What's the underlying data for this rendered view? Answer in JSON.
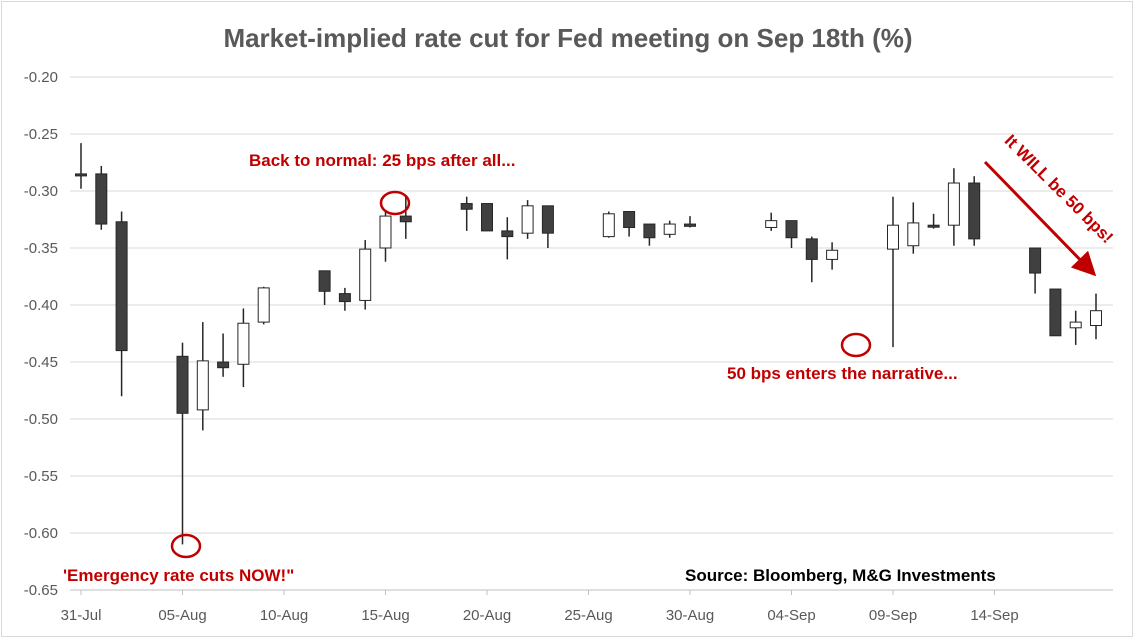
{
  "chart_data": {
    "type": "candlestick",
    "title": "Market-implied rate cut for Fed meeting on Sep 18th (%)",
    "ylim": [
      -0.65,
      -0.2
    ],
    "yticks": [
      "-0.20",
      "-0.25",
      "-0.30",
      "-0.35",
      "-0.40",
      "-0.45",
      "-0.50",
      "-0.55",
      "-0.60",
      "-0.65"
    ],
    "xlabels": [
      "31-Jul",
      "05-Aug",
      "10-Aug",
      "15-Aug",
      "20-Aug",
      "25-Aug",
      "30-Aug",
      "04-Sep",
      "09-Sep",
      "14-Sep"
    ],
    "grid": "horizontal",
    "source": "Source: Bloomberg, M&G Investments",
    "colors": {
      "down": "#404040",
      "up": "#ffffff",
      "outline": "#262626",
      "annotation": "#c00000",
      "grid": "#d9d9d9"
    },
    "candles": [
      {
        "date": "31-Jul",
        "open": -0.285,
        "high": -0.258,
        "low": -0.298,
        "close": -0.286
      },
      {
        "date": "01-Aug",
        "open": -0.285,
        "high": -0.278,
        "low": -0.334,
        "close": -0.329
      },
      {
        "date": "02-Aug",
        "open": -0.327,
        "high": -0.318,
        "low": -0.48,
        "close": -0.44
      },
      {
        "date": "05-Aug",
        "open": -0.445,
        "high": -0.433,
        "low": -0.61,
        "close": -0.495
      },
      {
        "date": "06-Aug",
        "open": -0.492,
        "high": -0.415,
        "low": -0.51,
        "close": -0.449
      },
      {
        "date": "07-Aug",
        "open": -0.45,
        "high": -0.425,
        "low": -0.463,
        "close": -0.455
      },
      {
        "date": "08-Aug",
        "open": -0.452,
        "high": -0.403,
        "low": -0.472,
        "close": -0.416
      },
      {
        "date": "09-Aug",
        "open": -0.415,
        "high": -0.384,
        "low": -0.417,
        "close": -0.385
      },
      {
        "date": "12-Aug",
        "open": -0.37,
        "high": -0.37,
        "low": -0.4,
        "close": -0.388
      },
      {
        "date": "13-Aug",
        "open": -0.39,
        "high": -0.385,
        "low": -0.405,
        "close": -0.397
      },
      {
        "date": "14-Aug",
        "open": -0.396,
        "high": -0.343,
        "low": -0.404,
        "close": -0.351
      },
      {
        "date": "15-Aug",
        "open": -0.35,
        "high": -0.318,
        "low": -0.362,
        "close": -0.322
      },
      {
        "date": "16-Aug",
        "open": -0.322,
        "high": -0.305,
        "low": -0.342,
        "close": -0.327
      },
      {
        "date": "19-Aug",
        "open": -0.311,
        "high": -0.305,
        "low": -0.335,
        "close": -0.316
      },
      {
        "date": "20-Aug",
        "open": -0.311,
        "high": -0.311,
        "low": -0.335,
        "close": -0.335
      },
      {
        "date": "21-Aug",
        "open": -0.335,
        "high": -0.323,
        "low": -0.36,
        "close": -0.34
      },
      {
        "date": "22-Aug",
        "open": -0.337,
        "high": -0.308,
        "low": -0.342,
        "close": -0.313
      },
      {
        "date": "23-Aug",
        "open": -0.313,
        "high": -0.313,
        "low": -0.35,
        "close": -0.337
      },
      {
        "date": "26-Aug",
        "open": -0.34,
        "high": -0.318,
        "low": -0.341,
        "close": -0.32
      },
      {
        "date": "27-Aug",
        "open": -0.318,
        "high": -0.318,
        "low": -0.34,
        "close": -0.332
      },
      {
        "date": "28-Aug",
        "open": -0.329,
        "high": -0.329,
        "low": -0.348,
        "close": -0.341
      },
      {
        "date": "29-Aug",
        "open": -0.338,
        "high": -0.326,
        "low": -0.341,
        "close": -0.329
      },
      {
        "date": "30-Aug",
        "open": -0.329,
        "high": -0.322,
        "low": -0.332,
        "close": -0.331
      },
      {
        "date": "03-Sep",
        "open": -0.332,
        "high": -0.319,
        "low": -0.335,
        "close": -0.326
      },
      {
        "date": "04-Sep",
        "open": -0.326,
        "high": -0.326,
        "low": -0.35,
        "close": -0.341
      },
      {
        "date": "05-Sep",
        "open": -0.342,
        "high": -0.34,
        "low": -0.38,
        "close": -0.36
      },
      {
        "date": "06-Sep",
        "open": -0.36,
        "high": -0.345,
        "low": -0.369,
        "close": -0.352
      },
      {
        "date": "09-Sep",
        "open": -0.351,
        "high": -0.305,
        "low": -0.437,
        "close": -0.33
      },
      {
        "date": "10-Sep",
        "open": -0.348,
        "high": -0.31,
        "low": -0.355,
        "close": -0.328
      },
      {
        "date": "11-Sep",
        "open": -0.33,
        "high": -0.32,
        "low": -0.333,
        "close": -0.331
      },
      {
        "date": "12-Sep",
        "open": -0.33,
        "high": -0.28,
        "low": -0.348,
        "close": -0.293
      },
      {
        "date": "13-Sep",
        "open": -0.293,
        "high": -0.287,
        "low": -0.348,
        "close": -0.342
      },
      {
        "date": "16-Sep",
        "open": -0.35,
        "high": -0.35,
        "low": -0.39,
        "close": -0.372
      },
      {
        "date": "17-Sep",
        "open": -0.386,
        "high": -0.386,
        "low": -0.427,
        "close": -0.427
      },
      {
        "date": "18-Sep",
        "open": -0.42,
        "high": -0.405,
        "low": -0.435,
        "close": -0.415
      },
      {
        "date": "19-Sep",
        "open": -0.418,
        "high": -0.39,
        "low": -0.43,
        "close": -0.405
      }
    ],
    "annotations": [
      {
        "text": "'Emergency rate cuts NOW!\""
      },
      {
        "text": "Back to normal: 25 bps after all..."
      },
      {
        "text": "50 bps enters the narrative..."
      },
      {
        "text": "It WILL be 50 bps!"
      }
    ]
  }
}
